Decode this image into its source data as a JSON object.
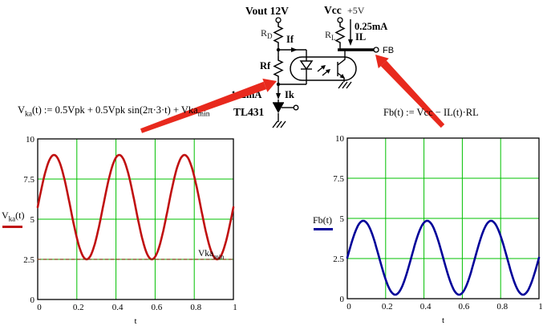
{
  "circuit": {
    "vout_label": "Vout 12V",
    "vcc_label": "Vcc",
    "vcc_value": "+5V",
    "rd_base": "R",
    "rd_sub": "D",
    "rl_base": "R",
    "rl_sub": "L",
    "if_label": "If",
    "il_value": "0.25mA",
    "il_label": "IL",
    "fb_label": "FB",
    "rf_label": "Rf",
    "ik_note": "1~2mA",
    "ik_label": "Ik",
    "tl431_label": "TL431"
  },
  "formulas": {
    "left": {
      "lead": "V",
      "lead_sub": "ka",
      "body": "(t) := 0.5Vpk + 0.5Vpk sin(2π·3·t) + Vka",
      "tail_sub": "min"
    },
    "right": {
      "text": "Fb(t) := Vcc − IL(t)·RL"
    }
  },
  "colors": {
    "grid": "#00C000",
    "vka_curve": "#C01010",
    "fb_curve": "#000099",
    "vka_min_dash": "#804018",
    "arrow_red": "#E8291D"
  },
  "chart_data": [
    {
      "type": "line",
      "title": "",
      "xlabel": "t",
      "ylabel": "Vka(t)",
      "xlim": [
        0,
        1
      ],
      "ylim": [
        0,
        10
      ],
      "xticks": [
        "0",
        "0.2",
        "0.4",
        "0.6",
        "0.8",
        "1"
      ],
      "xtick_values": [
        0,
        0.2,
        0.4,
        0.6,
        0.8,
        1
      ],
      "yticks": [
        "0",
        "2.5",
        "5",
        "7.5",
        "10"
      ],
      "ytick_values": [
        0,
        2.5,
        5,
        7.5,
        10
      ],
      "grid": true,
      "grid_color": "#00C000",
      "legend": {
        "base": "V",
        "sub": "ka",
        "rest": "(t)"
      },
      "legend_position": "left-middle",
      "annotation": {
        "base": "Vka",
        "sub": "min",
        "at_y": 2.5
      },
      "series": [
        {
          "id": "vka",
          "name": "Vka(t)",
          "fn": "sine",
          "offset": 5.75,
          "amplitude": 3.25,
          "cycles": 3,
          "phase": 0,
          "min": 2.5,
          "max": 9,
          "value_at_0": 5.75,
          "color": "#C01010",
          "width": 2.6,
          "dash": null
        },
        {
          "id": "vka-min",
          "name": "Vka_min",
          "fn": "const",
          "value": 2.5,
          "color": "#804018",
          "width": 1.2,
          "dash": "4 3"
        }
      ]
    },
    {
      "type": "line",
      "title": "",
      "xlabel": "t",
      "ylabel": "Fb(t)",
      "xlim": [
        0,
        1
      ],
      "ylim": [
        0,
        10
      ],
      "xticks": [
        "0",
        "0.2",
        "0.4",
        "0.6",
        "0.8",
        "1"
      ],
      "xtick_values": [
        0,
        0.2,
        0.4,
        0.6,
        0.8,
        1
      ],
      "yticks": [
        "0",
        "2.5",
        "5",
        "7.5",
        "10"
      ],
      "ytick_values": [
        0,
        2.5,
        5,
        7.5,
        10
      ],
      "grid": true,
      "grid_color": "#00C000",
      "legend": {
        "base": "Fb(t)",
        "sub": "",
        "rest": ""
      },
      "legend_position": "left-middle",
      "series": [
        {
          "id": "fb",
          "name": "Fb(t)",
          "fn": "sine",
          "offset": 2.55,
          "amplitude": 2.3,
          "cycles": 3,
          "phase": 0,
          "min": 0.25,
          "max": 4.85,
          "value_at_0": 2.55,
          "color": "#000099",
          "width": 2.6,
          "dash": null
        }
      ]
    }
  ]
}
